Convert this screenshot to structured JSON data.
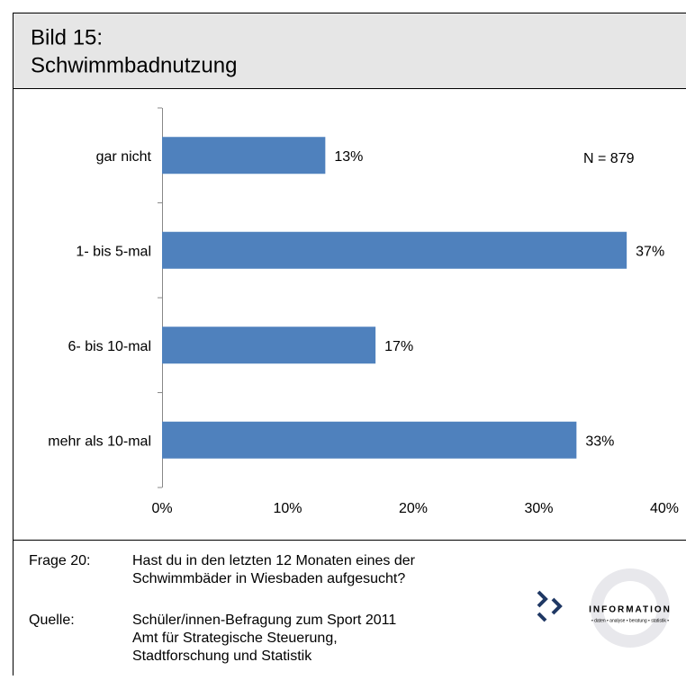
{
  "chart_data": {
    "type": "bar",
    "orientation": "horizontal",
    "title": [
      "Bild 15:",
      "Schwimmbadnutzung"
    ],
    "categories": [
      "gar nicht",
      "1- bis 5-mal",
      "6- bis 10-mal",
      "mehr als 10-mal"
    ],
    "values": [
      13,
      37,
      17,
      33
    ],
    "value_labels": [
      "13%",
      "37%",
      "17%",
      "33%"
    ],
    "color": "#4f81bd",
    "xlim": [
      0,
      40
    ],
    "xticks": [
      {
        "value": 0,
        "label": "0%"
      },
      {
        "value": 10,
        "label": "10%"
      },
      {
        "value": 20,
        "label": "20%"
      },
      {
        "value": 30,
        "label": "30%"
      },
      {
        "value": 40,
        "label": "40%"
      }
    ],
    "annotation": "N = 879",
    "grid": false
  },
  "notes": [
    {
      "label": "Frage 20:",
      "lines": [
        "Hast du in den letzten 12 Monaten eines der",
        "Schwimmbäder in Wiesbaden aufgesucht?"
      ]
    },
    {
      "label": "Quelle:",
      "lines": [
        "Schüler/innen-Befragung zum Sport 2011",
        "Amt für Strategische Steuerung,",
        "Stadtforschung und Statistik"
      ]
    }
  ],
  "logo": {
    "text": "INFORMATION",
    "tagline": "• daten • analyse • beratung • statistik •"
  }
}
